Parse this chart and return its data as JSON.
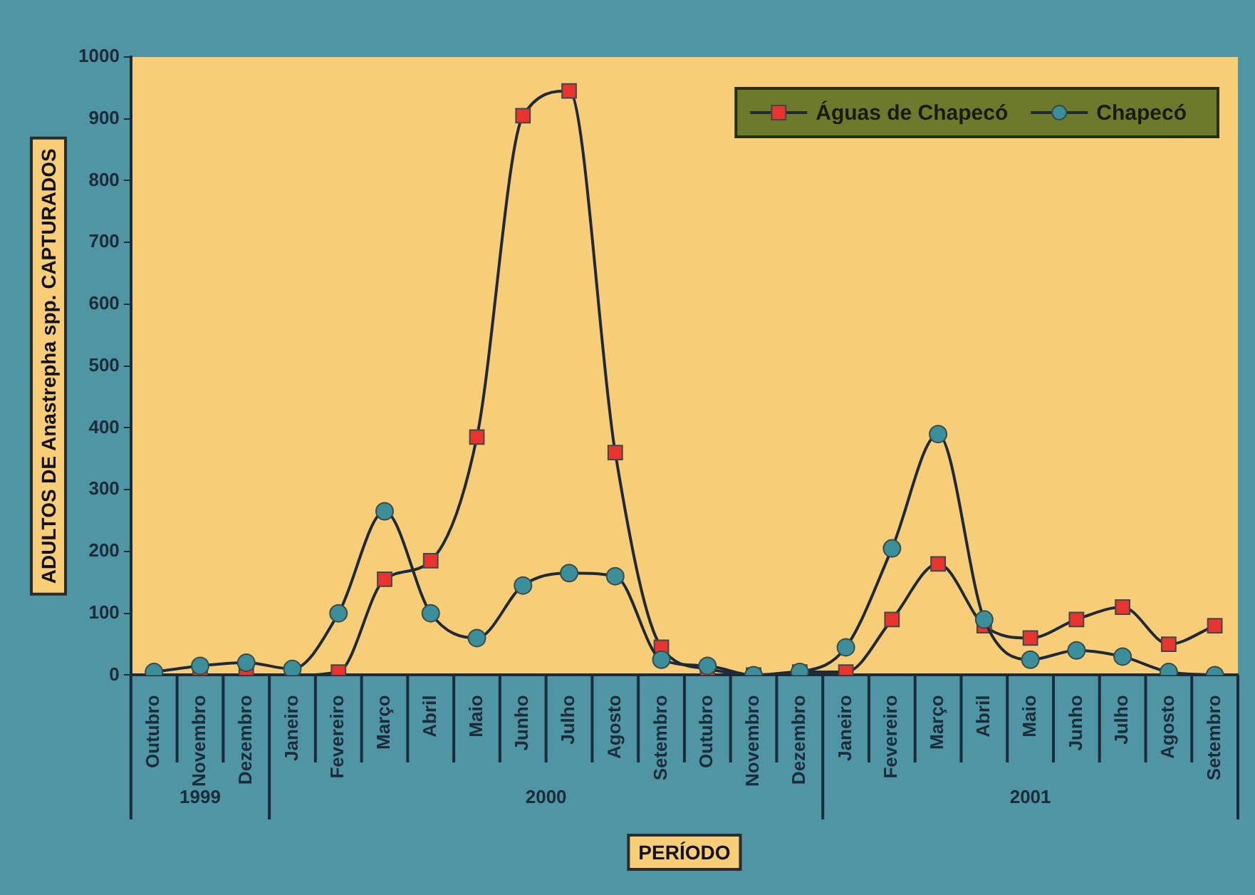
{
  "chart_data": {
    "type": "line",
    "xlabel": "PERÍODO",
    "ylabel": "ADULTOS DE Anastrepha spp. CAPTURADOS",
    "categories": [
      "Outubro",
      "Novembro",
      "Dezembro",
      "Janeiro",
      "Fevereiro",
      "Março",
      "Abril",
      "Maio",
      "Junho",
      "Julho",
      "Agosto",
      "Setembro",
      "Outubro",
      "Novembro",
      "Dezembro",
      "Janeiro",
      "Fevereiro",
      "Março",
      "Abril",
      "Maio",
      "Junho",
      "Julho",
      "Agosto",
      "Setembro"
    ],
    "series": [
      {
        "name": "Águas de Chapecó",
        "color": "#e8332e",
        "marker": "square",
        "values": [
          0,
          0,
          0,
          0,
          5,
          155,
          185,
          385,
          905,
          945,
          360,
          45,
          10,
          0,
          5,
          5,
          90,
          180,
          80,
          60,
          90,
          110,
          50,
          80
        ]
      },
      {
        "name": "Chapecó",
        "color": "#3a8f9a",
        "marker": "circle",
        "values": [
          5,
          15,
          20,
          10,
          100,
          265,
          100,
          60,
          145,
          165,
          160,
          25,
          15,
          0,
          5,
          45,
          205,
          390,
          90,
          25,
          40,
          30,
          5,
          0
        ]
      }
    ],
    "ylim": [
      0,
      1000
    ],
    "yticks": [
      0,
      100,
      200,
      300,
      400,
      500,
      600,
      700,
      800,
      900,
      1000
    ],
    "grid": false,
    "legend": "top right",
    "line_style": "solid",
    "annotations": [
      "1999",
      "2000",
      "2001"
    ]
  }
}
